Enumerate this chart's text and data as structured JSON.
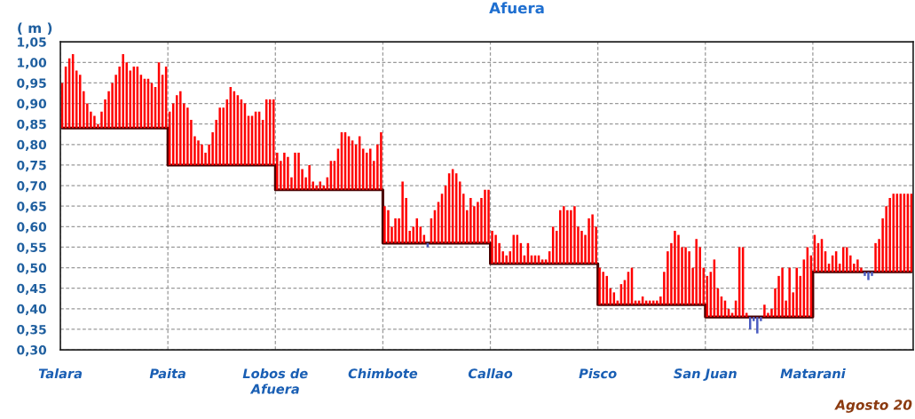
{
  "chart_data": {
    "type": "bar",
    "title": "Afuera",
    "ylabel": "( m )",
    "annotations": [
      "Agosto 20"
    ],
    "grid": true,
    "ylim": [
      0.3,
      1.05
    ],
    "yticks": [
      {
        "value": 0.3,
        "label": "0,30"
      },
      {
        "value": 0.35,
        "label": "0,35"
      },
      {
        "value": 0.4,
        "label": "0,40"
      },
      {
        "value": 0.45,
        "label": "0,45"
      },
      {
        "value": 0.5,
        "label": "0,50"
      },
      {
        "value": 0.55,
        "label": "0,55"
      },
      {
        "value": 0.6,
        "label": "0,60"
      },
      {
        "value": 0.65,
        "label": "0,65"
      },
      {
        "value": 0.7,
        "label": "0,70"
      },
      {
        "value": 0.75,
        "label": "0,75"
      },
      {
        "value": 0.8,
        "label": "0,80"
      },
      {
        "value": 0.85,
        "label": "0,85"
      },
      {
        "value": 0.9,
        "label": "0,90"
      },
      {
        "value": 0.95,
        "label": "0,95"
      },
      {
        "value": 1.0,
        "label": "1,00"
      },
      {
        "value": 1.05,
        "label": "1,05"
      }
    ],
    "categories": [
      "Talara",
      null,
      null,
      null,
      null,
      null,
      null,
      null,
      null,
      null,
      null,
      null,
      null,
      null,
      null,
      null,
      null,
      null,
      null,
      null,
      null,
      null,
      null,
      null,
      null,
      null,
      null,
      null,
      null,
      null,
      "Paita",
      null,
      null,
      null,
      null,
      null,
      null,
      null,
      null,
      null,
      null,
      null,
      null,
      null,
      null,
      null,
      null,
      null,
      null,
      null,
      null,
      null,
      null,
      null,
      null,
      null,
      null,
      null,
      null,
      null,
      "Lobos de Afuera",
      null,
      null,
      null,
      null,
      null,
      null,
      null,
      null,
      null,
      null,
      null,
      null,
      null,
      null,
      null,
      null,
      null,
      null,
      null,
      null,
      null,
      null,
      null,
      null,
      null,
      null,
      null,
      null,
      null,
      "Chimbote",
      null,
      null,
      null,
      null,
      null,
      null,
      null,
      null,
      null,
      null,
      null,
      null,
      null,
      null,
      null,
      null,
      null,
      null,
      null,
      null,
      null,
      null,
      null,
      null,
      null,
      null,
      null,
      null,
      null,
      "Callao",
      null,
      null,
      null,
      null,
      null,
      null,
      null,
      null,
      null,
      null,
      null,
      null,
      null,
      null,
      null,
      null,
      null,
      null,
      null,
      null,
      null,
      null,
      null,
      null,
      null,
      null,
      null,
      null,
      null,
      "Pisco",
      null,
      null,
      null,
      null,
      null,
      null,
      null,
      null,
      null,
      null,
      null,
      null,
      null,
      null,
      null,
      null,
      null,
      null,
      null,
      null,
      null,
      null,
      null,
      null,
      null,
      null,
      null,
      null,
      null,
      "San Juan",
      null,
      null,
      null,
      null,
      null,
      null,
      null,
      null,
      null,
      null,
      null,
      null,
      null,
      null,
      null,
      null,
      null,
      null,
      null,
      null,
      null,
      null,
      null,
      null,
      null,
      null,
      null,
      null,
      null,
      "Matarani",
      null,
      null,
      null,
      null,
      null,
      null,
      null,
      null,
      null,
      null,
      null,
      null,
      null,
      null,
      null,
      null,
      null,
      null,
      null,
      null,
      null,
      null,
      null,
      null,
      null,
      null,
      null
    ],
    "series": [
      {
        "type": "bar",
        "color": "#ff0000",
        "base": [
          0.84,
          0.84,
          0.84,
          0.84,
          0.84,
          0.84,
          0.84,
          0.84,
          0.84,
          0.84,
          0.84,
          0.84,
          0.84,
          0.84,
          0.84,
          0.84,
          0.84,
          0.84,
          0.84,
          0.84,
          0.84,
          0.84,
          0.84,
          0.84,
          0.84,
          0.84,
          0.84,
          0.84,
          0.84,
          0.84,
          0.75,
          0.75,
          0.75,
          0.75,
          0.75,
          0.75,
          0.75,
          0.75,
          0.75,
          0.75,
          0.75,
          0.75,
          0.75,
          0.75,
          0.75,
          0.75,
          0.75,
          0.75,
          0.75,
          0.75,
          0.75,
          0.75,
          0.75,
          0.75,
          0.75,
          0.75,
          0.75,
          0.75,
          0.75,
          0.75,
          0.69,
          0.69,
          0.69,
          0.69,
          0.69,
          0.69,
          0.69,
          0.69,
          0.69,
          0.69,
          0.69,
          0.69,
          0.69,
          0.69,
          0.69,
          0.69,
          0.69,
          0.69,
          0.69,
          0.69,
          0.69,
          0.69,
          0.69,
          0.69,
          0.69,
          0.69,
          0.69,
          0.69,
          0.69,
          0.69,
          0.56,
          0.56,
          0.56,
          0.56,
          0.56,
          0.56,
          0.56,
          0.56,
          0.56,
          0.56,
          0.56,
          0.56,
          null,
          0.56,
          0.56,
          0.56,
          0.56,
          0.56,
          0.56,
          0.56,
          0.56,
          0.56,
          0.56,
          0.56,
          0.56,
          0.56,
          0.56,
          0.56,
          0.56,
          0.56,
          0.51,
          0.51,
          0.51,
          0.51,
          0.51,
          0.51,
          0.51,
          0.51,
          0.51,
          0.51,
          0.51,
          0.51,
          0.51,
          0.51,
          0.51,
          0.51,
          0.51,
          0.51,
          0.51,
          0.51,
          0.51,
          0.51,
          0.51,
          0.51,
          0.51,
          0.51,
          0.51,
          0.51,
          0.51,
          0.51,
          0.41,
          0.41,
          0.41,
          0.41,
          0.41,
          0.41,
          0.41,
          0.41,
          0.41,
          0.41,
          0.41,
          0.41,
          0.41,
          0.41,
          0.41,
          0.41,
          0.41,
          0.41,
          0.41,
          0.41,
          0.41,
          0.41,
          0.41,
          0.41,
          0.41,
          0.41,
          0.41,
          0.41,
          0.41,
          0.41,
          0.38,
          0.38,
          0.38,
          0.38,
          0.38,
          0.38,
          0.38,
          0.38,
          0.38,
          0.38,
          0.38,
          0.38,
          null,
          null,
          null,
          null,
          0.38,
          0.38,
          0.38,
          0.38,
          0.38,
          0.38,
          0.38,
          0.38,
          0.38,
          0.38,
          0.38,
          0.38,
          0.38,
          0.38,
          0.49,
          0.49,
          0.49,
          0.49,
          0.49,
          0.49,
          0.49,
          0.49,
          0.49,
          0.49,
          0.49,
          0.49,
          0.49,
          0.49,
          null,
          null,
          null,
          0.49,
          0.49,
          0.49,
          0.49,
          0.49,
          0.49,
          0.49,
          0.49,
          0.49,
          0.49,
          0.49
        ],
        "values": [
          0.11,
          0.15,
          0.17,
          0.18,
          0.14,
          0.13,
          0.09,
          0.06,
          0.04,
          0.03,
          0.01,
          0.04,
          0.07,
          0.09,
          0.11,
          0.13,
          0.15,
          0.18,
          0.16,
          0.14,
          0.15,
          0.15,
          0.13,
          0.12,
          0.12,
          0.11,
          0.1,
          0.16,
          0.13,
          0.15,
          0.13,
          0.15,
          0.17,
          0.18,
          0.15,
          0.14,
          0.11,
          0.07,
          0.06,
          0.05,
          0.03,
          0.05,
          0.08,
          0.11,
          0.14,
          0.14,
          0.16,
          0.19,
          0.18,
          0.17,
          0.16,
          0.15,
          0.12,
          0.12,
          0.13,
          0.13,
          0.11,
          0.16,
          0.16,
          0.16,
          0.09,
          0.07,
          0.09,
          0.08,
          0.03,
          0.09,
          0.09,
          0.05,
          0.03,
          0.06,
          0.02,
          0.01,
          0.02,
          0.01,
          0.03,
          0.07,
          0.07,
          0.1,
          0.14,
          0.14,
          0.13,
          0.12,
          0.11,
          0.13,
          0.1,
          0.09,
          0.1,
          0.07,
          0.11,
          0.14,
          0.09,
          0.08,
          0.04,
          0.06,
          0.06,
          0.15,
          0.11,
          0.03,
          0.04,
          0.06,
          0.04,
          0.02,
          null,
          0.06,
          0.08,
          0.1,
          0.12,
          0.14,
          0.17,
          0.18,
          0.17,
          0.15,
          0.12,
          0.08,
          0.11,
          0.09,
          0.1,
          0.11,
          0.13,
          0.13,
          0.08,
          0.07,
          0.05,
          0.03,
          0.02,
          0.03,
          0.07,
          0.07,
          0.05,
          0.02,
          0.05,
          0.02,
          0.02,
          0.02,
          0.01,
          0.01,
          0.03,
          0.09,
          0.08,
          0.13,
          0.14,
          0.13,
          0.13,
          0.14,
          0.09,
          0.08,
          0.07,
          0.11,
          0.12,
          0.09,
          0.09,
          0.08,
          0.07,
          0.04,
          0.03,
          0.01,
          0.05,
          0.06,
          0.08,
          0.09,
          0.01,
          0.01,
          0.02,
          0.01,
          0.01,
          0.01,
          0.01,
          0.02,
          0.08,
          0.13,
          0.15,
          0.18,
          0.17,
          0.14,
          0.14,
          0.13,
          0.09,
          0.16,
          0.14,
          0.09,
          0.1,
          0.11,
          0.14,
          0.07,
          0.05,
          0.04,
          0.02,
          0.01,
          0.04,
          0.17,
          0.17,
          0.01,
          null,
          null,
          null,
          null,
          0.03,
          0.01,
          0.02,
          0.07,
          0.1,
          0.12,
          0.04,
          0.12,
          0.06,
          0.12,
          0.1,
          0.14,
          0.17,
          0.15,
          0.09,
          0.07,
          0.08,
          0.05,
          0.02,
          0.04,
          0.05,
          0.02,
          0.06,
          0.06,
          0.04,
          0.02,
          0.03,
          0.01,
          null,
          null,
          null,
          0.07,
          0.08,
          0.13,
          0.16,
          0.18,
          0.19,
          0.19,
          0.19,
          0.19,
          0.19,
          0.19
        ]
      },
      {
        "type": "bar",
        "color": "#4a5cc0",
        "base": [
          null,
          null,
          null,
          null,
          null,
          null,
          null,
          null,
          null,
          null,
          null,
          null,
          null,
          null,
          null,
          null,
          null,
          null,
          null,
          null,
          null,
          null,
          null,
          null,
          null,
          null,
          null,
          null,
          null,
          null,
          null,
          null,
          null,
          null,
          null,
          null,
          null,
          null,
          null,
          null,
          null,
          null,
          null,
          null,
          null,
          null,
          null,
          null,
          null,
          null,
          null,
          null,
          null,
          null,
          null,
          null,
          null,
          null,
          null,
          null,
          null,
          null,
          null,
          null,
          null,
          null,
          null,
          null,
          null,
          null,
          null,
          null,
          null,
          null,
          null,
          null,
          null,
          null,
          null,
          null,
          null,
          null,
          null,
          null,
          null,
          null,
          null,
          null,
          null,
          null,
          null,
          null,
          null,
          null,
          null,
          null,
          null,
          null,
          null,
          null,
          null,
          null,
          0.56,
          null,
          null,
          null,
          null,
          null,
          null,
          null,
          null,
          null,
          null,
          null,
          null,
          null,
          null,
          null,
          null,
          null,
          null,
          null,
          null,
          null,
          null,
          null,
          null,
          null,
          null,
          null,
          null,
          null,
          null,
          null,
          null,
          null,
          null,
          null,
          null,
          null,
          null,
          null,
          null,
          null,
          null,
          null,
          null,
          null,
          null,
          null,
          null,
          null,
          null,
          null,
          null,
          null,
          null,
          null,
          null,
          null,
          null,
          null,
          null,
          null,
          null,
          null,
          null,
          null,
          null,
          null,
          null,
          null,
          null,
          null,
          null,
          null,
          null,
          null,
          null,
          null,
          null,
          null,
          null,
          null,
          null,
          null,
          null,
          null,
          null,
          null,
          null,
          null,
          0.38,
          0.38,
          0.38,
          0.38,
          null,
          null,
          null,
          null,
          null,
          null,
          null,
          null,
          null,
          null,
          null,
          null,
          null,
          null,
          null,
          null,
          null,
          null,
          null,
          null,
          null,
          null,
          null,
          null,
          null,
          null,
          null,
          null,
          0.49,
          0.49,
          0.49,
          null,
          null,
          null,
          null,
          null,
          null,
          null,
          null,
          null,
          null,
          null
        ],
        "values": [
          null,
          null,
          null,
          null,
          null,
          null,
          null,
          null,
          null,
          null,
          null,
          null,
          null,
          null,
          null,
          null,
          null,
          null,
          null,
          null,
          null,
          null,
          null,
          null,
          null,
          null,
          null,
          null,
          null,
          null,
          null,
          null,
          null,
          null,
          null,
          null,
          null,
          null,
          null,
          null,
          null,
          null,
          null,
          null,
          null,
          null,
          null,
          null,
          null,
          null,
          null,
          null,
          null,
          null,
          null,
          null,
          null,
          null,
          null,
          null,
          null,
          null,
          null,
          null,
          null,
          null,
          null,
          null,
          null,
          null,
          null,
          null,
          null,
          null,
          null,
          null,
          null,
          null,
          null,
          null,
          null,
          null,
          null,
          null,
          null,
          null,
          null,
          null,
          null,
          null,
          null,
          null,
          null,
          null,
          null,
          null,
          null,
          null,
          null,
          null,
          null,
          null,
          -0.01,
          null,
          null,
          null,
          null,
          null,
          null,
          null,
          null,
          null,
          null,
          null,
          null,
          null,
          null,
          null,
          null,
          null,
          null,
          null,
          null,
          null,
          null,
          null,
          null,
          null,
          null,
          null,
          null,
          null,
          null,
          null,
          null,
          null,
          null,
          null,
          null,
          null,
          null,
          null,
          null,
          null,
          null,
          null,
          null,
          null,
          null,
          null,
          null,
          null,
          null,
          null,
          null,
          null,
          null,
          null,
          null,
          null,
          null,
          null,
          null,
          null,
          null,
          null,
          null,
          null,
          null,
          null,
          null,
          null,
          null,
          null,
          null,
          null,
          null,
          null,
          null,
          null,
          null,
          null,
          null,
          null,
          null,
          null,
          null,
          null,
          null,
          null,
          null,
          null,
          -0.03,
          -0.01,
          -0.04,
          -0.01,
          null,
          null,
          null,
          null,
          null,
          null,
          null,
          null,
          null,
          null,
          null,
          null,
          null,
          null,
          null,
          null,
          null,
          null,
          null,
          null,
          null,
          null,
          null,
          null,
          null,
          null,
          null,
          null,
          -0.01,
          -0.02,
          -0.01,
          null,
          null,
          null,
          null,
          null,
          null,
          null,
          null,
          null,
          null,
          null
        ]
      },
      {
        "type": "step",
        "color": "#4a0000",
        "values": [
          0.84,
          0.84,
          0.84,
          0.84,
          0.84,
          0.84,
          0.84,
          0.84,
          0.84,
          0.84,
          0.84,
          0.84,
          0.84,
          0.84,
          0.84,
          0.84,
          0.84,
          0.84,
          0.84,
          0.84,
          0.84,
          0.84,
          0.84,
          0.84,
          0.84,
          0.84,
          0.84,
          0.84,
          0.84,
          0.84,
          0.75,
          0.75,
          0.75,
          0.75,
          0.75,
          0.75,
          0.75,
          0.75,
          0.75,
          0.75,
          0.75,
          0.75,
          0.75,
          0.75,
          0.75,
          0.75,
          0.75,
          0.75,
          0.75,
          0.75,
          0.75,
          0.75,
          0.75,
          0.75,
          0.75,
          0.75,
          0.75,
          0.75,
          0.75,
          0.75,
          0.69,
          0.69,
          0.69,
          0.69,
          0.69,
          0.69,
          0.69,
          0.69,
          0.69,
          0.69,
          0.69,
          0.69,
          0.69,
          0.69,
          0.69,
          0.69,
          0.69,
          0.69,
          0.69,
          0.69,
          0.69,
          0.69,
          0.69,
          0.69,
          0.69,
          0.69,
          0.69,
          0.69,
          0.69,
          0.69,
          0.56,
          0.56,
          0.56,
          0.56,
          0.56,
          0.56,
          0.56,
          0.56,
          0.56,
          0.56,
          0.56,
          0.56,
          0.56,
          0.56,
          0.56,
          0.56,
          0.56,
          0.56,
          0.56,
          0.56,
          0.56,
          0.56,
          0.56,
          0.56,
          0.56,
          0.56,
          0.56,
          0.56,
          0.56,
          0.56,
          0.51,
          0.51,
          0.51,
          0.51,
          0.51,
          0.51,
          0.51,
          0.51,
          0.51,
          0.51,
          0.51,
          0.51,
          0.51,
          0.51,
          0.51,
          0.51,
          0.51,
          0.51,
          0.51,
          0.51,
          0.51,
          0.51,
          0.51,
          0.51,
          0.51,
          0.51,
          0.51,
          0.51,
          0.51,
          0.51,
          0.41,
          0.41,
          0.41,
          0.41,
          0.41,
          0.41,
          0.41,
          0.41,
          0.41,
          0.41,
          0.41,
          0.41,
          0.41,
          0.41,
          0.41,
          0.41,
          0.41,
          0.41,
          0.41,
          0.41,
          0.41,
          0.41,
          0.41,
          0.41,
          0.41,
          0.41,
          0.41,
          0.41,
          0.41,
          0.41,
          0.38,
          0.38,
          0.38,
          0.38,
          0.38,
          0.38,
          0.38,
          0.38,
          0.38,
          0.38,
          0.38,
          0.38,
          0.38,
          0.38,
          0.38,
          0.38,
          0.38,
          0.38,
          0.38,
          0.38,
          0.38,
          0.38,
          0.38,
          0.38,
          0.38,
          0.38,
          0.38,
          0.38,
          0.38,
          0.38,
          0.49,
          0.49,
          0.49,
          0.49,
          0.49,
          0.49,
          0.49,
          0.49,
          0.49,
          0.49,
          0.49,
          0.49,
          0.49,
          0.49,
          0.49,
          0.49,
          0.49,
          0.49,
          0.49,
          0.49,
          0.49,
          0.49,
          0.49,
          0.49,
          0.49,
          0.49,
          0.49,
          0.49
        ]
      }
    ]
  }
}
